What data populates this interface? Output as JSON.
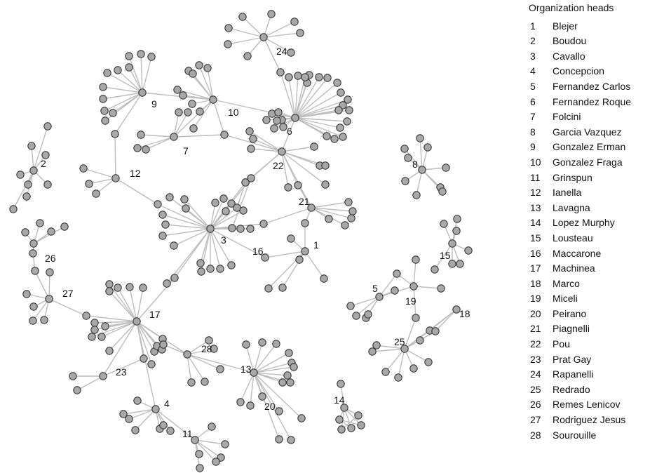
{
  "legend": {
    "title": "Organization heads",
    "entries": [
      {
        "number": "1",
        "name": "Blejer"
      },
      {
        "number": "2",
        "name": "Boudou"
      },
      {
        "number": "3",
        "name": "Cavallo"
      },
      {
        "number": "4",
        "name": "Concepcion"
      },
      {
        "number": "5",
        "name": "Fernandez Carlos"
      },
      {
        "number": "6",
        "name": "Fernandez Roque"
      },
      {
        "number": "7",
        "name": "Folcini"
      },
      {
        "number": "8",
        "name": "Garcia Vazquez"
      },
      {
        "number": "9",
        "name": "Gonzalez Erman"
      },
      {
        "number": "10",
        "name": "Gonzalez Fraga"
      },
      {
        "number": "11",
        "name": "Grinspun"
      },
      {
        "number": "12",
        "name": "Ianella"
      },
      {
        "number": "13",
        "name": "Lavagna"
      },
      {
        "number": "14",
        "name": "Lopez Murphy"
      },
      {
        "number": "15",
        "name": "Lousteau"
      },
      {
        "number": "16",
        "name": "Maccarone"
      },
      {
        "number": "17",
        "name": "Machinea"
      },
      {
        "number": "18",
        "name": "Marco"
      },
      {
        "number": "19",
        "name": "Miceli"
      },
      {
        "number": "20",
        "name": "Peirano"
      },
      {
        "number": "21",
        "name": "Piagnelli"
      },
      {
        "number": "22",
        "name": "Pou"
      },
      {
        "number": "23",
        "name": "Prat Gay"
      },
      {
        "number": "24",
        "name": "Rapanelli"
      },
      {
        "number": "25",
        "name": "Redrado"
      },
      {
        "number": "26",
        "name": "Remes Lenicov"
      },
      {
        "number": "27",
        "name": "Rodriguez Jesus"
      },
      {
        "number": "28",
        "name": "Sourouille"
      }
    ]
  },
  "hub_labels": [
    "1",
    "2",
    "3",
    "4",
    "5",
    "6",
    "7",
    "8",
    "9",
    "10",
    "11",
    "12",
    "13",
    "14",
    "15",
    "16",
    "17",
    "18",
    "19",
    "20",
    "21",
    "22",
    "23",
    "24",
    "25",
    "26",
    "27",
    "28"
  ],
  "colors": {
    "node_fill": "#a8a8a8",
    "node_stroke": "#2b2b2b",
    "edge": "#bdbdbd",
    "text": "#111111"
  }
}
